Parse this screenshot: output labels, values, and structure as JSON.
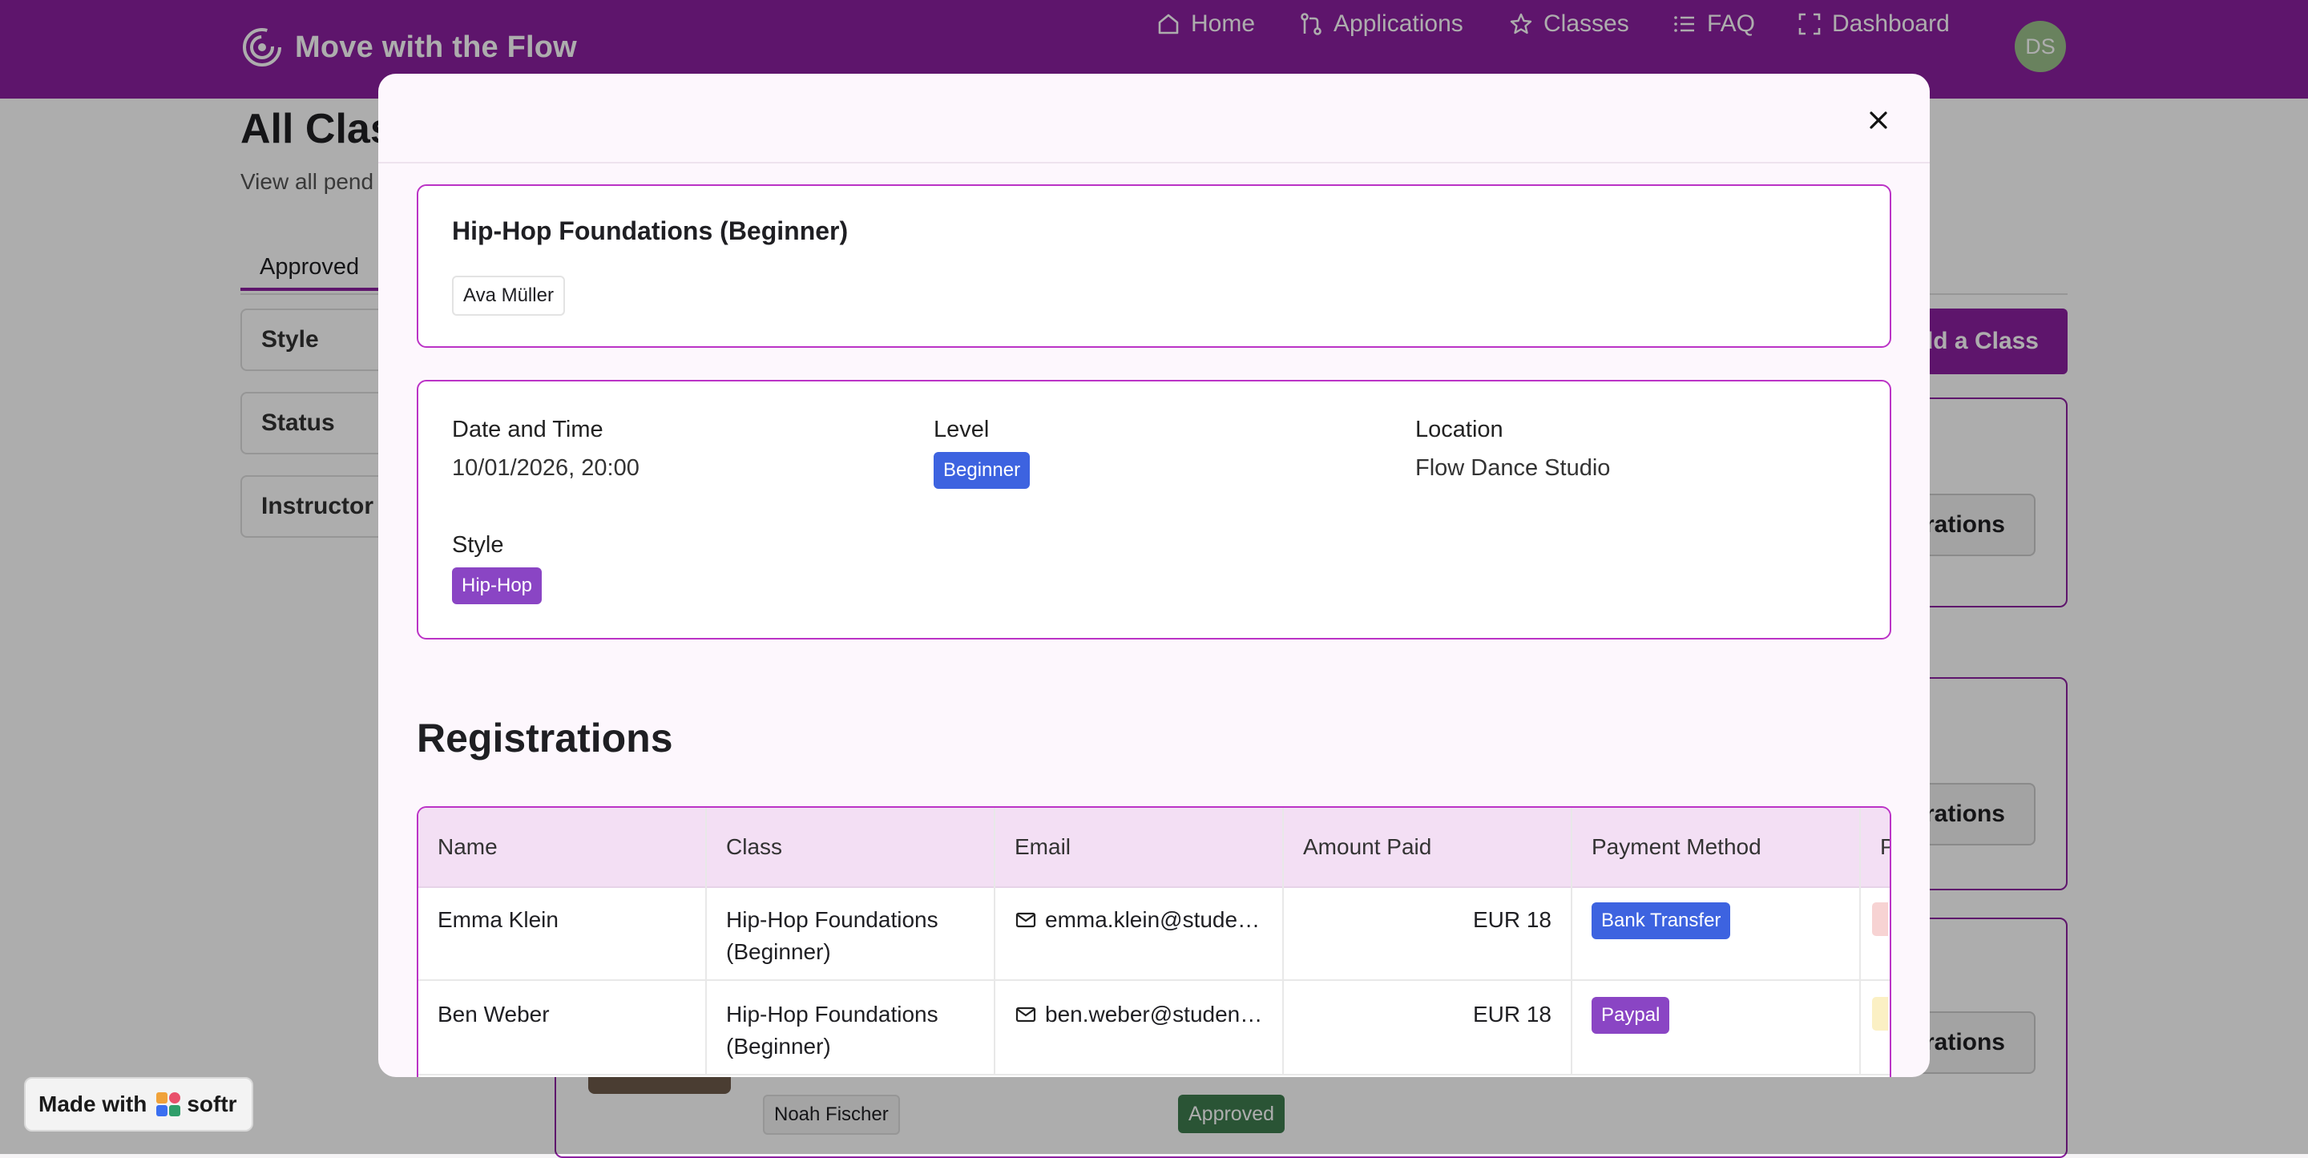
{
  "app": {
    "name": "Move with the Flow",
    "logo_icon": "spiral-logo-icon",
    "brand_color": "#8b1fa0"
  },
  "nav": {
    "items": [
      {
        "label": "Home",
        "icon": "home-icon"
      },
      {
        "label": "Applications",
        "icon": "git-pull-icon"
      },
      {
        "label": "Classes",
        "icon": "star-icon"
      },
      {
        "label": "FAQ",
        "icon": "list-icon"
      },
      {
        "label": "Dashboard",
        "icon": "expand-icon"
      }
    ],
    "avatar_initials": "DS"
  },
  "background_page": {
    "title": "All Clas",
    "subtitle": "View all pend",
    "tab_approved": "Approved",
    "filters": [
      "Style",
      "Status",
      "Instructor"
    ],
    "add_class_label": "dd a Class",
    "registrations_button": "rations",
    "card_instructor": "Noah Fischer",
    "card_status": "Approved"
  },
  "modal": {
    "class_title": "Hip-Hop Foundations (Beginner)",
    "instructor": "Ava Müller",
    "details": {
      "date_label": "Date and Time",
      "date_value": "10/01/2026, 20:00",
      "level_label": "Level",
      "level_value": "Beginner",
      "level_color": "#3d63e0",
      "location_label": "Location",
      "location_value": "Flow Dance Studio",
      "style_label": "Style",
      "style_value": "Hip-Hop",
      "style_color": "#8a45c4"
    },
    "registrations_title": "Registrations",
    "table": {
      "headers": [
        "Name",
        "Class",
        "Email",
        "Amount Paid",
        "Payment Method",
        "P"
      ],
      "rows": [
        {
          "name": "Emma Klein",
          "class": "Hip-Hop Foundations (Beginner)",
          "email": "emma.klein@student.example",
          "amount": "EUR 18",
          "payment_method": "Bank Transfer",
          "payment_color": "#3d63e0"
        },
        {
          "name": "Ben Weber",
          "class": "Hip-Hop Foundations (Beginner)",
          "email": "ben.weber@student.example",
          "amount": "EUR 18",
          "payment_method": "Paypal",
          "payment_color": "#8a45c4"
        }
      ]
    }
  },
  "footer": {
    "made_with": "Made with",
    "brand": "softr"
  }
}
